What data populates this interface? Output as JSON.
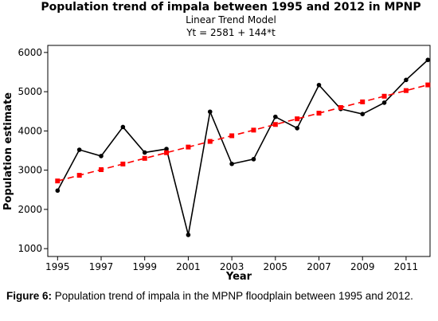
{
  "chart_data": {
    "type": "line",
    "title": "Population trend of impala between 1995 and 2012 in MPNP",
    "subtitle": [
      "Linear Trend Model",
      "Yt = 2581 + 144*t"
    ],
    "xlabel": "Year",
    "ylabel": "Population estimate",
    "x": [
      1995,
      1996,
      1997,
      1998,
      1999,
      2000,
      2001,
      2002,
      2003,
      2004,
      2005,
      2006,
      2007,
      2008,
      2009,
      2010,
      2011,
      2012
    ],
    "series": [
      {
        "color": "#000000",
        "dashed": false,
        "marker": "circle",
        "values": [
          2480,
          3520,
          3360,
          4100,
          3450,
          3540,
          1350,
          4490,
          3160,
          3280,
          4360,
          4070,
          5170,
          4560,
          4430,
          4720,
          5300,
          5810
        ]
      },
      {
        "color": "#ff0000",
        "dashed": true,
        "marker": "square",
        "values": [
          2725,
          2869,
          3013,
          3157,
          3301,
          3445,
          3589,
          3733,
          3877,
          4021,
          4165,
          4309,
          4453,
          4597,
          4741,
          4885,
          5029,
          5173
        ]
      }
    ],
    "xlim": [
      1994.55,
      2012.1
    ],
    "xticks": [
      1995,
      1997,
      1999,
      2001,
      2003,
      2005,
      2007,
      2009,
      2011
    ],
    "ylim": [
      800,
      6180
    ],
    "yticks": [
      1000,
      2000,
      3000,
      4000,
      5000,
      6000
    ]
  },
  "caption": {
    "label": "Figure 6:",
    "text": " Population trend of impala in the MPNP floodplain between 1995 and 2012."
  }
}
